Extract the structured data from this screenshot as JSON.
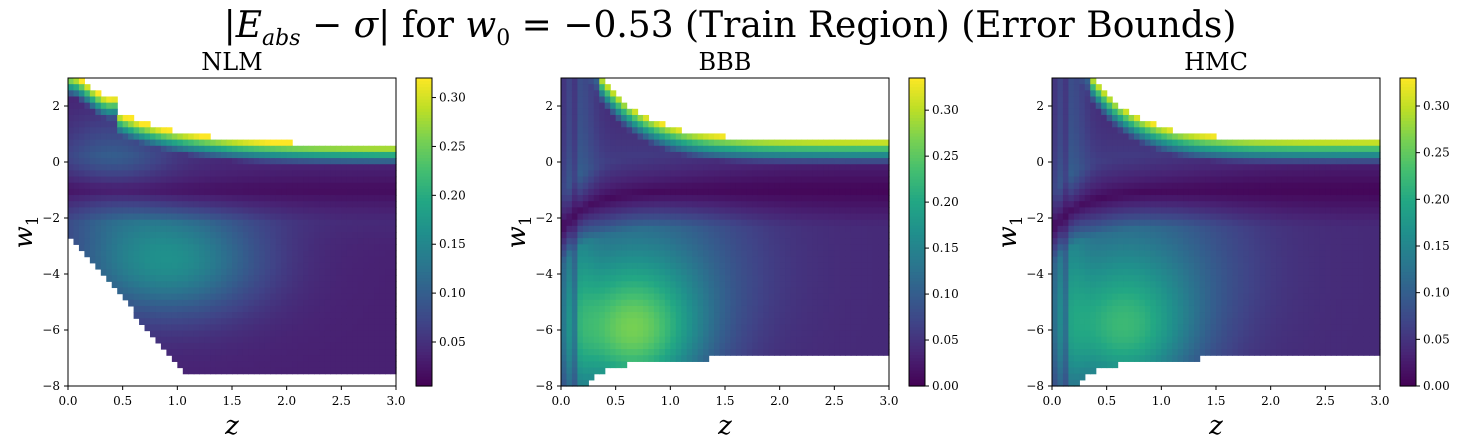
{
  "figure": {
    "suptitle_parts": {
      "open": "|",
      "lhs_main": "E",
      "lhs_sub": "abs",
      "minus": " − ",
      "sigma": "σ",
      "close": "| for ",
      "w0_main": "w",
      "w0_sub": "0",
      "rest": " = −0.53 (Train Region) (Error Bounds)"
    }
  },
  "chart_data": [
    {
      "type": "heatmap",
      "title": "NLM",
      "xlabel": "z",
      "ylabel": "w1",
      "xlim": [
        0,
        3
      ],
      "ylim": [
        -8,
        3
      ],
      "xticks": [
        "0.0",
        "0.5",
        "1.0",
        "1.5",
        "2.0",
        "2.5",
        "3.0"
      ],
      "yticks": [
        "−8",
        "−6",
        "−4",
        "−2",
        "0",
        "2"
      ],
      "colorbar": {
        "min": 0.005,
        "max": 0.32,
        "ticks": [
          "0.05",
          "0.10",
          "0.15",
          "0.20",
          "0.25",
          "0.30"
        ],
        "colormap": "viridis"
      },
      "notes": "Masked (white) region below a diagonal boundary from (0,-2.5) to (1,-7) and above w1≈0.7 at large z; minimum ridge near w1≈-1"
    },
    {
      "type": "heatmap",
      "title": "BBB",
      "xlabel": "z",
      "ylabel": "w1",
      "xlim": [
        0,
        3
      ],
      "ylim": [
        -8,
        3
      ],
      "xticks": [
        "0.0",
        "0.5",
        "1.0",
        "1.5",
        "2.0",
        "2.5",
        "3.0"
      ],
      "yticks": [
        "−8",
        "−6",
        "−4",
        "−2",
        "0",
        "2"
      ],
      "colorbar": {
        "min": 0.0,
        "max": 0.335,
        "ticks": [
          "0.00",
          "0.05",
          "0.10",
          "0.15",
          "0.20",
          "0.25",
          "0.30"
        ],
        "colormap": "viridis"
      },
      "notes": "Masked top-right above w1≈0.7 and bottom below w1≈-7; high values near w1≈0.8 edge and around z≈0.6,w1≈-7"
    },
    {
      "type": "heatmap",
      "title": "HMC",
      "xlabel": "z",
      "ylabel": "w1",
      "xlim": [
        0,
        3
      ],
      "ylim": [
        -8,
        3
      ],
      "xticks": [
        "0.0",
        "0.5",
        "1.0",
        "1.5",
        "2.0",
        "2.5",
        "3.0"
      ],
      "yticks": [
        "−8",
        "−6",
        "−4",
        "−2",
        "0",
        "2"
      ],
      "colorbar": {
        "min": 0.0,
        "max": 0.33,
        "ticks": [
          "0.00",
          "0.05",
          "0.10",
          "0.15",
          "0.20",
          "0.25",
          "0.30"
        ],
        "colormap": "viridis"
      },
      "notes": "Similar to BBB with masked top-right above w1≈0.7 and bottom below w1≈-7"
    }
  ]
}
